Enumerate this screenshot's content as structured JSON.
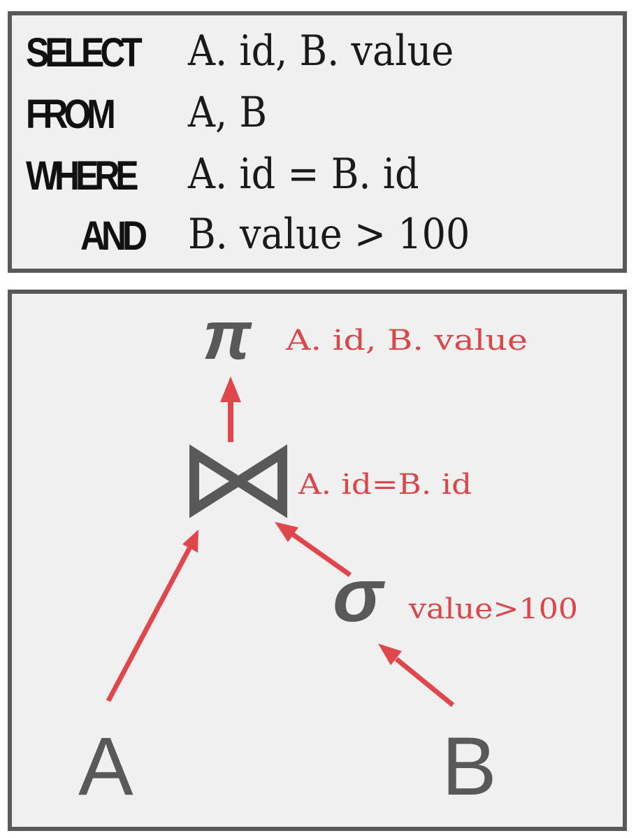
{
  "sql": {
    "lines": [
      {
        "keyword": "SELECT",
        "code": "A. id,  B. value"
      },
      {
        "keyword": "FROM",
        "code": "A,  B"
      },
      {
        "keyword": "WHERE",
        "code": "A. id = B. id"
      },
      {
        "keyword": "AND",
        "code": "B. value > 100"
      }
    ]
  },
  "plan": {
    "projection": {
      "symbol": "π",
      "label": "A. id,  B. value"
    },
    "join": {
      "symbol": "⋈",
      "label": "A. id=B. id"
    },
    "selection": {
      "symbol": "σ",
      "label": "value>100"
    },
    "tables": {
      "left": "A",
      "right": "B"
    }
  },
  "colors": {
    "border": "#595959",
    "panel_bg": "#f0f0f0",
    "operator": "#595959",
    "accent": "#e0474c",
    "label": "#d9474a",
    "keyword": "#111111"
  }
}
